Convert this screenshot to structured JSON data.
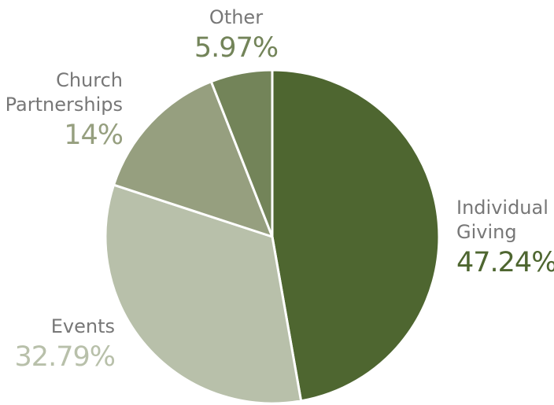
{
  "chart_data": {
    "type": "pie",
    "title": "",
    "start_angle_deg": 0,
    "direction": "clockwise",
    "slices": [
      {
        "label_lines": [
          "Individual",
          "Giving"
        ],
        "value": 47.24,
        "value_label": "47.24%",
        "color": "#4e6630"
      },
      {
        "label_lines": [
          "Events"
        ],
        "value": 32.79,
        "value_label": "32.79%",
        "color": "#b8c0aa"
      },
      {
        "label_lines": [
          "Church",
          "Partnerships"
        ],
        "value": 14,
        "value_label": "14%",
        "color": "#969f7f"
      },
      {
        "label_lines": [
          "Other"
        ],
        "value": 5.97,
        "value_label": "5.97%",
        "color": "#738459"
      }
    ],
    "separator_color": "#ffffff"
  }
}
